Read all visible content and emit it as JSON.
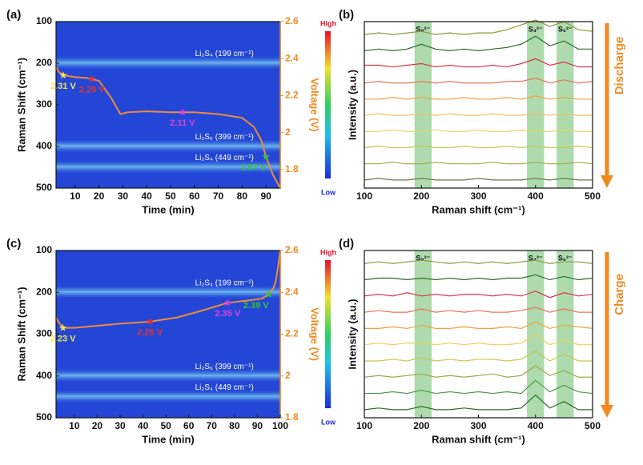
{
  "chart_data": [
    {
      "type": "heatmap",
      "title": "(a)",
      "xlabel": "Time (min)",
      "ylabel": "Raman Shift (cm⁻¹)",
      "y2label": "Voltage (V)",
      "xlim": [
        2,
        96
      ],
      "xticks": [
        10,
        20,
        30,
        40,
        50,
        60,
        70,
        80,
        90
      ],
      "ylim": [
        500,
        100
      ],
      "yticks": [
        100,
        200,
        300,
        400,
        500
      ],
      "y2lim": [
        1.7,
        2.6
      ],
      "y2ticks": [
        1.8,
        2.0,
        2.2,
        2.4,
        2.6
      ],
      "colorbar": {
        "high": "High",
        "low": "Low"
      },
      "bands": [
        199,
        399,
        449
      ],
      "band_labels": [
        "Li₂S₄ (199 cm⁻¹)",
        "Li₂S₆ (399 cm⁻¹)",
        "Li₂S₄ (449 cm⁻¹)"
      ],
      "series": [
        {
          "color": "#f08a3c",
          "axis": "y2",
          "x": [
            2,
            3,
            5,
            10,
            15,
            20,
            25,
            29,
            32,
            40,
            50,
            60,
            70,
            80,
            85,
            88,
            90,
            93,
            96
          ],
          "values": [
            2.36,
            2.33,
            2.31,
            2.3,
            2.295,
            2.28,
            2.19,
            2.1,
            2.11,
            2.115,
            2.11,
            2.11,
            2.1,
            2.08,
            2.03,
            1.96,
            1.87,
            1.77,
            1.7
          ]
        }
      ],
      "points": {
        "x": [
          5,
          17,
          55,
          90
        ],
        "values": [
          2.31,
          2.29,
          2.11,
          1.87
        ],
        "value_labels": [
          "2.31 V",
          "2.29 V",
          "2.11 V",
          "1.87 V"
        ],
        "colors": [
          "#f2e64a",
          "#e8332a",
          "#e040e0",
          "#36c436"
        ]
      }
    },
    {
      "type": "line",
      "title": "(b)",
      "xlabel": "Raman shift (cm⁻¹)",
      "ylabel": "Intensity (a.u.)",
      "arrow_label": "Discharge",
      "xlim": [
        100,
        500
      ],
      "xticks": [
        100,
        200,
        300,
        400,
        500
      ],
      "ylim": [
        0.5,
        10.8
      ],
      "regions": [
        [
          188,
          218
        ],
        [
          385,
          415
        ],
        [
          437,
          467
        ]
      ],
      "region_labels": [
        "S₈²⁻",
        "S₄²⁻",
        "S₆²⁻"
      ],
      "x": [
        100,
        125,
        150,
        175,
        200,
        225,
        250,
        275,
        300,
        325,
        350,
        375,
        400,
        425,
        450,
        475,
        500
      ],
      "series": [
        {
          "color": "#8a9a3c",
          "values": [
            10,
            10.1,
            10,
            10.1,
            10.2,
            10,
            10.1,
            10,
            10.1,
            10.1,
            10.3,
            10.6,
            10.9,
            10.5,
            10.8,
            10.3,
            10.2
          ]
        },
        {
          "color": "#2e6b2e",
          "values": [
            9,
            9.1,
            9,
            9.1,
            9.4,
            9.1,
            9,
            9.1,
            9,
            9.1,
            9.2,
            9.4,
            9.9,
            9.3,
            9.6,
            9.1,
            9.1
          ]
        },
        {
          "color": "#e0304a",
          "values": [
            8.1,
            8.1,
            8,
            8.1,
            8.2,
            8,
            8.1,
            8,
            8,
            8.1,
            8,
            8.2,
            8.5,
            8.1,
            8.3,
            8,
            8
          ]
        },
        {
          "color": "#e8735a",
          "values": [
            7,
            7.1,
            7,
            7,
            7.1,
            7,
            7.1,
            7,
            7,
            7,
            7.1,
            7.1,
            7.3,
            7,
            7.2,
            7,
            7.1
          ]
        },
        {
          "color": "#f0a040",
          "values": [
            6,
            6,
            6.1,
            6,
            6.1,
            6,
            6,
            6.1,
            6,
            6,
            6.1,
            6,
            6.2,
            6,
            6.1,
            6,
            6
          ]
        },
        {
          "color": "#f2c060",
          "values": [
            5,
            5.1,
            5,
            5,
            5.1,
            5,
            5.1,
            5,
            5,
            5.1,
            5,
            5,
            5.1,
            5,
            5.1,
            5,
            5
          ]
        },
        {
          "color": "#e8d45a",
          "values": [
            4,
            4,
            4.1,
            4,
            4,
            4.1,
            4,
            4,
            4.1,
            4,
            4,
            4.1,
            4,
            4,
            4.1,
            4,
            4
          ]
        },
        {
          "color": "#c8c850",
          "values": [
            3,
            3.1,
            3,
            3,
            3.1,
            3,
            3,
            3.1,
            3,
            3,
            3.1,
            3,
            3.1,
            3,
            3,
            3.1,
            3
          ]
        },
        {
          "color": "#a0a848",
          "values": [
            2,
            2,
            2.1,
            2,
            2,
            2.1,
            2,
            2,
            2,
            2.1,
            2,
            2,
            2.1,
            2,
            2,
            2.1,
            2
          ]
        },
        {
          "color": "#6a7a40",
          "values": [
            1,
            1.1,
            1,
            1,
            1.1,
            1,
            1,
            1,
            1.1,
            1,
            1,
            1,
            1.1,
            1,
            1.1,
            1,
            1
          ]
        }
      ]
    },
    {
      "type": "heatmap",
      "title": "(c)",
      "xlabel": "Time (min)",
      "ylabel": "Raman Shift (cm⁻¹)",
      "y2label": "Voltage (V)",
      "xlim": [
        2,
        100
      ],
      "xticks": [
        10,
        20,
        30,
        40,
        50,
        60,
        70,
        80,
        90,
        100
      ],
      "ylim": [
        500,
        100
      ],
      "yticks": [
        100,
        200,
        300,
        400,
        500
      ],
      "y2lim": [
        1.8,
        2.6
      ],
      "y2ticks": [
        1.8,
        2.0,
        2.2,
        2.4,
        2.6
      ],
      "colorbar": {
        "high": "High",
        "low": "Low"
      },
      "bands": [
        199,
        399,
        449
      ],
      "band_labels": [
        "Li₂S₄ (199 cm⁻¹)",
        "Li₂S₆ (399 cm⁻¹)",
        "Li₂S₄ (449 cm⁻¹)"
      ],
      "series": [
        {
          "color": "#f08a3c",
          "axis": "y2",
          "x": [
            2,
            3,
            5,
            10,
            20,
            30,
            43,
            55,
            65,
            77,
            85,
            92,
            95,
            97,
            98,
            99,
            100
          ],
          "values": [
            2.28,
            2.26,
            2.23,
            2.23,
            2.24,
            2.25,
            2.26,
            2.28,
            2.31,
            2.35,
            2.36,
            2.37,
            2.39,
            2.42,
            2.45,
            2.52,
            2.6
          ]
        }
      ],
      "points": {
        "x": [
          5,
          43,
          77,
          95
        ],
        "values": [
          2.23,
          2.26,
          2.35,
          2.39
        ],
        "value_labels": [
          "2.23 V",
          "2.26 V",
          "2.35 V",
          "2.39 V"
        ],
        "colors": [
          "#f2e64a",
          "#e8332a",
          "#e040e0",
          "#36c436"
        ]
      }
    },
    {
      "type": "line",
      "title": "(d)",
      "xlabel": "Raman shift (cm⁻¹)",
      "ylabel": "Intensity (a.u.)",
      "arrow_label": "Charge",
      "xlim": [
        100,
        500
      ],
      "xticks": [
        100,
        200,
        300,
        400,
        500
      ],
      "ylim": [
        0.5,
        10.8
      ],
      "regions": [
        [
          188,
          218
        ],
        [
          385,
          415
        ],
        [
          437,
          467
        ]
      ],
      "region_labels": [
        "S₈²⁻",
        "S₄²⁻",
        "S₆²⁻"
      ],
      "x": [
        100,
        125,
        150,
        175,
        200,
        225,
        250,
        275,
        300,
        325,
        350,
        375,
        400,
        425,
        450,
        475,
        500
      ],
      "series": [
        {
          "color": "#8a9a3c",
          "values": [
            10,
            10.1,
            10,
            10.1,
            10.2,
            10.1,
            10,
            10.1,
            10,
            10.1,
            10,
            10.1,
            10.2,
            10,
            10.1,
            10.1,
            10
          ]
        },
        {
          "color": "#2e6b2e",
          "values": [
            9,
            9.1,
            9.1,
            9,
            9.1,
            9,
            9.1,
            9,
            9.1,
            9,
            9.1,
            9.1,
            9.3,
            9,
            9.2,
            9,
            9.1
          ]
        },
        {
          "color": "#e0304a",
          "values": [
            8,
            8.1,
            8,
            8.2,
            8,
            8.1,
            8,
            8.1,
            8.1,
            8,
            8.1,
            8,
            8.3,
            7.9,
            8.2,
            8,
            8.1
          ]
        },
        {
          "color": "#e8735a",
          "values": [
            7,
            7.1,
            7,
            7,
            7.2,
            7,
            7.1,
            7,
            7.1,
            7,
            7,
            7.1,
            7.3,
            7,
            7.2,
            7,
            7
          ]
        },
        {
          "color": "#f0a040",
          "values": [
            6,
            6,
            6.1,
            6,
            6.2,
            6,
            6,
            6.1,
            6,
            6,
            6.1,
            6,
            6.4,
            6,
            6.2,
            6.1,
            6
          ]
        },
        {
          "color": "#e8d45a",
          "values": [
            5,
            5.1,
            5,
            5.1,
            5.1,
            5,
            5.1,
            5,
            5.1,
            5,
            5,
            5.1,
            5.6,
            5,
            5.3,
            5,
            5
          ]
        },
        {
          "color": "#c8c850",
          "values": [
            4,
            4,
            4.1,
            4,
            4.2,
            4,
            4.1,
            4,
            4.1,
            4.1,
            4,
            4.1,
            4.6,
            4,
            4.4,
            4,
            4
          ]
        },
        {
          "color": "#a0a848",
          "values": [
            3,
            3.1,
            3,
            3.1,
            3.2,
            3,
            3.1,
            3,
            3.1,
            3.2,
            3,
            3.1,
            3.7,
            3.1,
            3.4,
            3,
            3
          ]
        },
        {
          "color": "#4e9a4e",
          "values": [
            2,
            2,
            2.1,
            2,
            2.2,
            2,
            2.1,
            2,
            2.1,
            2,
            2.1,
            2,
            2.8,
            2.1,
            2.5,
            2.1,
            2
          ]
        },
        {
          "color": "#2e6b2e",
          "values": [
            1,
            1.1,
            1,
            1,
            1.2,
            1,
            1,
            1.1,
            1,
            1,
            1,
            1.1,
            1.9,
            1.1,
            1.5,
            1,
            1
          ]
        }
      ]
    }
  ]
}
